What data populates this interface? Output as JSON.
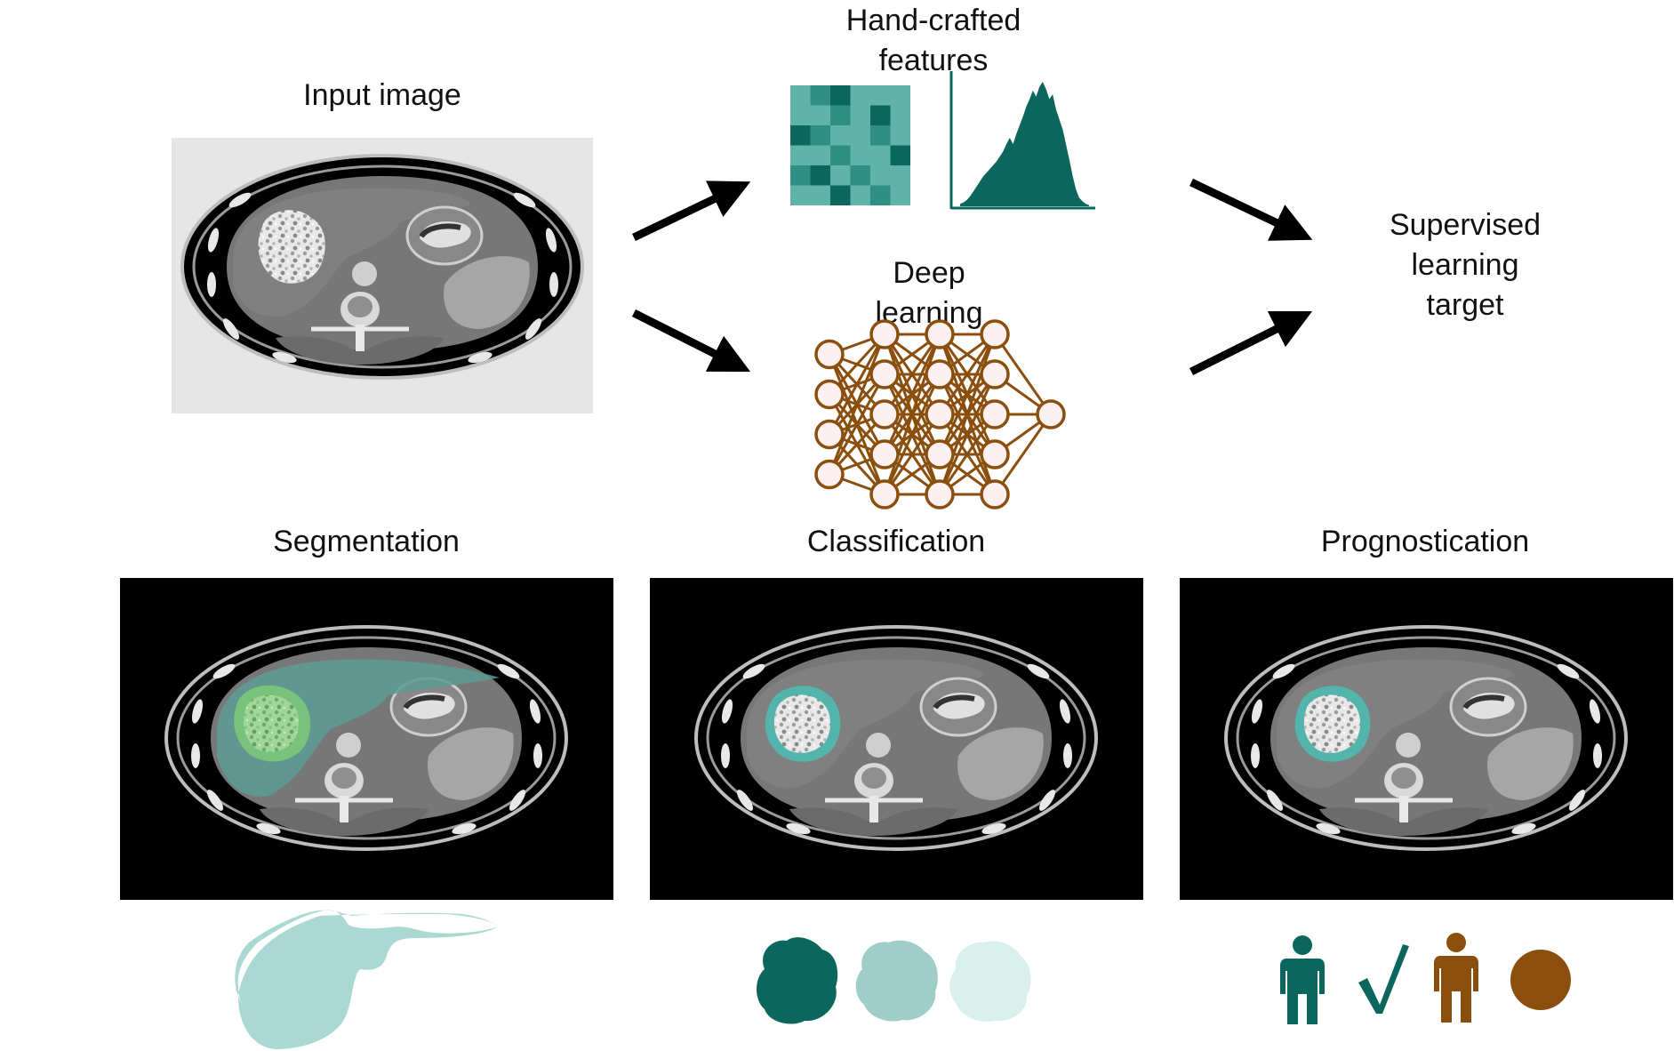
{
  "labels": {
    "input_image": "Input image",
    "handcrafted_line1": "Hand-crafted",
    "handcrafted_line2": "features",
    "deep_line1": "Deep",
    "deep_line2": "learning",
    "target_line1": "Supervised",
    "target_line2": "learning",
    "target_line3": "target",
    "segmentation": "Segmentation",
    "classification": "Classification",
    "prognostication": "Prognostication"
  },
  "colors": {
    "teal_dark": "#0b675e",
    "teal_mid": "#5fb3a8",
    "teal_light": "#9fcdc8",
    "teal_pale": "#d8efec",
    "liver_light": "#a9d9d2",
    "brown": "#8a4e0d",
    "node_fill": "#fdf0f0",
    "ct_bg_input": "#e6e6e6",
    "ct_bg_panel": "#000000",
    "seg_overlay": "#5a9b93",
    "seg_tumor": "#8fd08a",
    "tumor_ring": "#52b4aa"
  },
  "glcm": {
    "grid": [
      [
        1,
        2,
        0,
        1,
        1,
        1
      ],
      [
        1,
        1,
        2,
        1,
        0,
        1
      ],
      [
        0,
        2,
        1,
        1,
        2,
        1
      ],
      [
        1,
        1,
        2,
        1,
        1,
        0
      ],
      [
        2,
        0,
        1,
        2,
        1,
        1
      ],
      [
        1,
        1,
        0,
        1,
        2,
        1
      ]
    ]
  },
  "histogram": {
    "values": [
      0.02,
      0.03,
      0.05,
      0.08,
      0.12,
      0.16,
      0.2,
      0.24,
      0.27,
      0.3,
      0.33,
      0.36,
      0.4,
      0.44,
      0.5,
      0.55,
      0.5,
      0.58,
      0.65,
      0.72,
      0.8,
      0.86,
      0.93,
      0.88,
      0.96,
      1.0,
      0.94,
      0.86,
      0.9,
      0.78,
      0.7,
      0.62,
      0.5,
      0.38,
      0.25,
      0.14,
      0.07,
      0.04,
      0.02,
      0.01
    ]
  },
  "network": {
    "layers": [
      4,
      5,
      5,
      5,
      1
    ]
  },
  "icons": {
    "input": "ct-scan-image",
    "glcm": "texture-matrix-icon",
    "histogram": "histogram-icon",
    "network": "neural-network-icon",
    "segmentation_output": "liver-shape-icon",
    "classification_output": "tumor-class-icons",
    "prognosis_output": "patient-outcome-icons",
    "checkmark": "checkmark-icon"
  }
}
